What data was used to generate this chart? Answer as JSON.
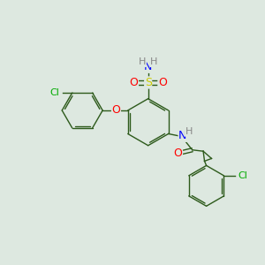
{
  "background_color": "#dde8e0",
  "bond_color": "#2d5a1b",
  "atom_colors": {
    "Cl": "#00aa00",
    "O": "#ff0000",
    "S": "#cccc00",
    "N": "#0000ff",
    "H": "#888888",
    "C": "#2d5a1b"
  },
  "figsize": [
    3.0,
    3.0
  ],
  "dpi": 100
}
